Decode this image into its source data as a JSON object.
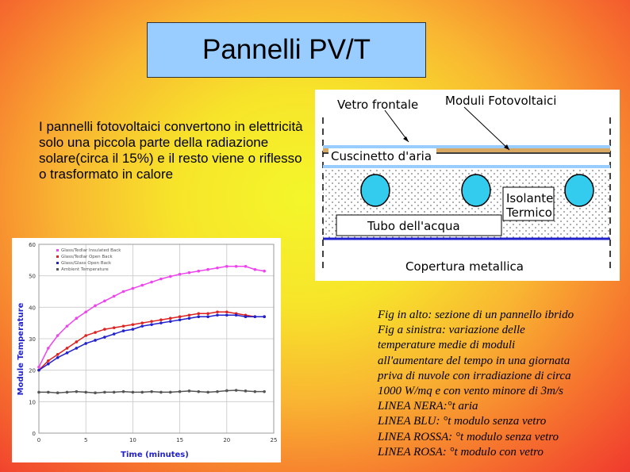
{
  "slide": {
    "title": "Pannelli PV/T",
    "intro": "I pannelli fotovoltaici convertono in elettricità solo una piccola parte della radiazione solare(circa il 15%) e il resto viene o riflesso o trasformato in calore"
  },
  "diagram": {
    "label_glass": "Vetro frontale",
    "label_pv": "Moduli Fotovoltaici",
    "label_air": "Cuscinetto d'aria",
    "label_insulation_1": "Isolante",
    "label_insulation_2": "Termico",
    "label_tube": "Tubo dell'acqua",
    "label_cover": "Copertura metallica"
  },
  "caption": {
    "lines": [
      "Fig in alto: sezione di un pannello ibrido",
      "Fig a sinistra:  variazione delle",
      "temperature medie di moduli",
      "all'aumentare del tempo in una giornata",
      "priva di nuvole con irradiazione di circa",
      "1000 W/mq e con vento minore di 3m/s",
      "LINEA NERA:°t aria",
      "LINEA BLU: °t modulo senza vetro",
      "LINEA ROSSA: °t modulo senza vetro",
      "LINEA ROSA: °t modulo con vetro"
    ]
  },
  "chart_data": {
    "type": "line",
    "xlabel": "Time (minutes)",
    "ylabel": "Module Temperature",
    "xlim": [
      0,
      25
    ],
    "ylim": [
      0,
      60
    ],
    "xticks": [
      "0",
      "5",
      "10",
      "15",
      "20",
      "25"
    ],
    "yticks": [
      "0",
      "10",
      "20",
      "30",
      "40",
      "50",
      "60"
    ],
    "grid": true,
    "legend_position": "top-left",
    "x": [
      0,
      1,
      2,
      3,
      4,
      5,
      6,
      7,
      8,
      9,
      10,
      11,
      12,
      13,
      14,
      15,
      16,
      17,
      18,
      19,
      20,
      21,
      22,
      23,
      24
    ],
    "series": [
      {
        "name": "Glass/Tedlar Insulated Back",
        "color": "#ee44ee",
        "values": [
          21,
          27,
          31,
          34,
          36.5,
          38.5,
          40.5,
          42,
          43.5,
          45,
          46,
          47,
          48,
          49,
          49.8,
          50.5,
          51,
          51.5,
          52,
          52.5,
          53,
          53,
          53,
          52,
          51.5
        ]
      },
      {
        "name": "Glass/Tedlar Open Back",
        "color": "#dd2222",
        "values": [
          20,
          23,
          25,
          27,
          29,
          31,
          32,
          33,
          33.5,
          34,
          34.5,
          35,
          35.5,
          36,
          36.5,
          37,
          37.5,
          38,
          38,
          38.5,
          38.5,
          38,
          37.5,
          37,
          37
        ]
      },
      {
        "name": "Glass/Glass Open Back",
        "color": "#2222cc",
        "values": [
          20,
          22,
          24,
          25.5,
          27,
          28.5,
          29.5,
          30.5,
          31.5,
          32.5,
          33,
          34,
          34.5,
          35,
          35.5,
          36,
          36.5,
          37,
          37,
          37.5,
          37.5,
          37.5,
          37,
          37,
          37
        ]
      },
      {
        "name": "Ambient Temperature",
        "color": "#555555",
        "values": [
          13,
          13,
          12.8,
          13,
          13.2,
          13,
          12.8,
          13,
          13,
          13.2,
          13,
          13,
          13.2,
          13,
          13,
          13.2,
          13.4,
          13.2,
          13,
          13.2,
          13.5,
          13.6,
          13.4,
          13.2,
          13.2
        ]
      }
    ]
  },
  "colors": {
    "title_box": "#99ccff",
    "blue_line": "#2222cc",
    "tube_fill": "#33ccee"
  }
}
